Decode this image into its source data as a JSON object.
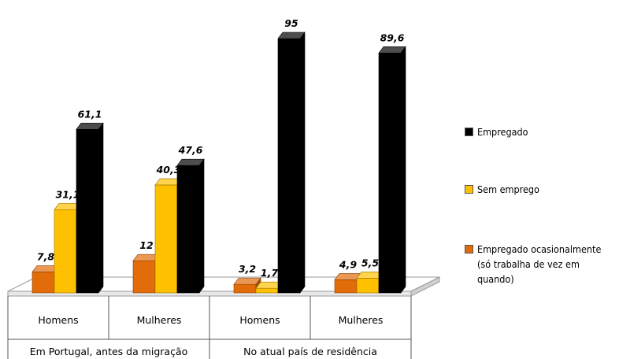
{
  "chart_data": {
    "type": "bar",
    "groups": [
      {
        "label": "Em Portugal, antes da migração",
        "categories": [
          "Homens",
          "Mulheres"
        ]
      },
      {
        "label": "No atual país de residência",
        "categories": [
          "Homens",
          "Mulheres"
        ]
      }
    ],
    "categories": [
      "Homens",
      "Mulheres",
      "Homens",
      "Mulheres"
    ],
    "series": [
      {
        "name": "Empregado ocasionalmente (só trabalha de vez em quando)",
        "color": "#E36C0A",
        "values": [
          7.8,
          12,
          3.2,
          4.9
        ],
        "labels": [
          "7,8",
          "12",
          "3,2",
          "4,9"
        ]
      },
      {
        "name": "Sem emprego",
        "color": "#FFC000",
        "values": [
          31.1,
          40.3,
          1.7,
          5.5
        ],
        "labels": [
          "31,1",
          "40,3",
          "1,7",
          "5,5"
        ]
      },
      {
        "name": "Empregado",
        "color": "#000000",
        "values": [
          61.1,
          47.6,
          95,
          89.6
        ],
        "labels": [
          "61,1",
          "47,6",
          "95",
          "89,6"
        ]
      }
    ],
    "ylim": [
      0,
      100
    ],
    "grid": false,
    "legend_position": "right",
    "legend_order": [
      "Empregado",
      "Sem emprego",
      "Empregado ocasionalmente (só trabalha de vez em quando)"
    ]
  },
  "legend": {
    "items": [
      {
        "label": "Empregado",
        "color": "#000000"
      },
      {
        "label": "Sem emprego",
        "color": "#FFC000"
      },
      {
        "label": "Empregado ocasionalmente\n(só trabalha de vez em\nquando)",
        "color": "#E36C0A"
      }
    ]
  }
}
